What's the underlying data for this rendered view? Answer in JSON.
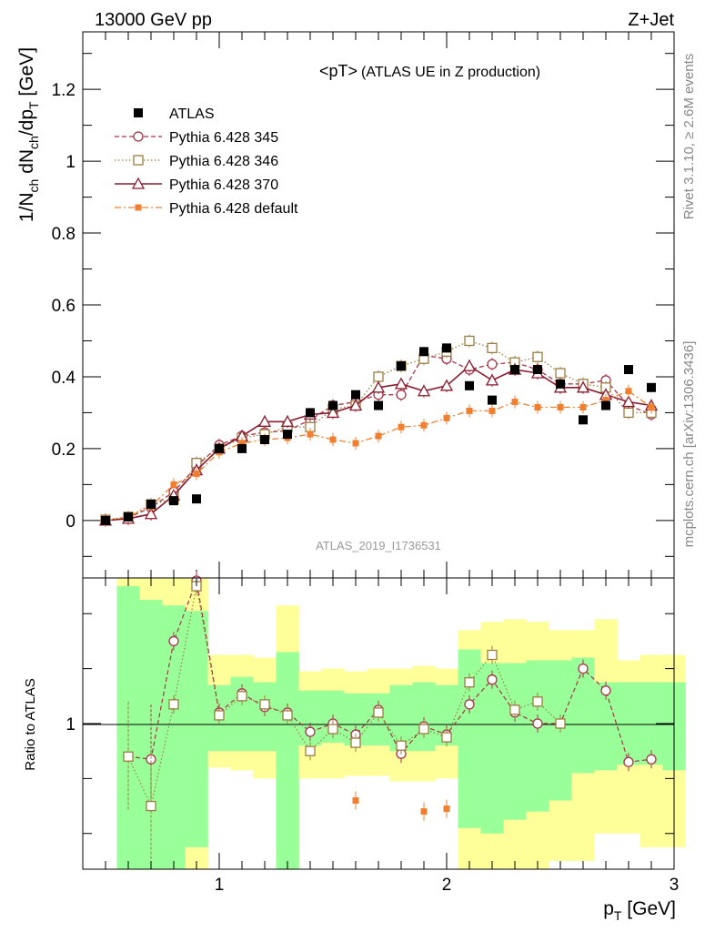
{
  "header": {
    "left": "13000 GeV pp",
    "right": "Z+Jet"
  },
  "side_labels": {
    "rivet": "Rivet 3.1.10, ≥ 2.6M events",
    "mcplots": "mcplots.cern.ch [arXiv:1306.3436]"
  },
  "chart_data": [
    {
      "type": "scatter",
      "panel": "main",
      "title": "<pT>",
      "subtitle": "(ATLAS UE in Z production)",
      "analysis_label": "ATLAS_2019_I1736531",
      "ylabel": "1/N_ch dN_ch/dp_T [GeV]",
      "ylim": [
        -0.16,
        1.36
      ],
      "yticks": [
        0,
        0.2,
        0.4,
        0.6,
        0.8,
        1,
        1.2
      ],
      "ytick_labels": [
        "0",
        "0.2",
        "0.4",
        "0.6",
        "0.8",
        "1",
        "1.2"
      ],
      "xlim": [
        0.4,
        3.0
      ],
      "grid": false,
      "legend_position": "top-left",
      "series": [
        {
          "name": "ATLAS",
          "style": "data",
          "color": "#000000",
          "x": [
            0.5,
            0.6,
            0.7,
            0.8,
            0.9,
            1.0,
            1.1,
            1.2,
            1.3,
            1.4,
            1.5,
            1.6,
            1.7,
            1.8,
            1.9,
            2.0,
            2.1,
            2.2,
            2.3,
            2.4,
            2.5,
            2.6,
            2.7,
            2.8,
            2.9
          ],
          "y": [
            0.0,
            0.01,
            0.045,
            0.055,
            0.06,
            0.2,
            0.2,
            0.225,
            0.24,
            0.3,
            0.32,
            0.35,
            0.32,
            0.43,
            0.47,
            0.48,
            0.375,
            0.335,
            0.42,
            0.42,
            0.38,
            0.28,
            0.32,
            0.42,
            0.37
          ]
        },
        {
          "name": "Pythia 6.428 345",
          "style": "circle-dashed",
          "color": "#a83248",
          "x": [
            0.5,
            0.6,
            0.7,
            0.8,
            0.9,
            1.0,
            1.1,
            1.2,
            1.3,
            1.4,
            1.5,
            1.6,
            1.7,
            1.8,
            1.9,
            2.0,
            2.1,
            2.2,
            2.3,
            2.4,
            2.5,
            2.6,
            2.7,
            2.8,
            2.9
          ],
          "y": [
            0.0,
            0.008,
            0.036,
            0.08,
            0.15,
            0.21,
            0.235,
            0.245,
            0.25,
            0.28,
            0.32,
            0.33,
            0.35,
            0.35,
            0.46,
            0.45,
            0.42,
            0.435,
            0.44,
            0.42,
            0.38,
            0.38,
            0.39,
            0.32,
            0.295
          ]
        },
        {
          "name": "Pythia 6.428 346",
          "style": "square-dotted",
          "color": "#9a7d40",
          "x": [
            0.5,
            0.6,
            0.7,
            0.8,
            0.9,
            1.0,
            1.1,
            1.2,
            1.3,
            1.4,
            1.5,
            1.6,
            1.7,
            1.8,
            1.9,
            2.0,
            2.1,
            2.2,
            2.3,
            2.4,
            2.5,
            2.6,
            2.7,
            2.8,
            2.9
          ],
          "y": [
            0.002,
            0.01,
            0.045,
            0.06,
            0.16,
            0.2,
            0.23,
            0.24,
            0.26,
            0.26,
            0.31,
            0.32,
            0.4,
            0.43,
            0.45,
            0.47,
            0.5,
            0.48,
            0.44,
            0.455,
            0.41,
            0.38,
            0.37,
            0.3,
            0.3
          ]
        },
        {
          "name": "Pythia 6.428 370",
          "style": "triangle-solid",
          "color": "#8b1a2e",
          "x": [
            0.5,
            0.6,
            0.7,
            0.8,
            0.9,
            1.0,
            1.1,
            1.2,
            1.3,
            1.4,
            1.5,
            1.6,
            1.7,
            1.8,
            1.9,
            2.0,
            2.1,
            2.2,
            2.3,
            2.4,
            2.5,
            2.6,
            2.7,
            2.8,
            2.9
          ],
          "y": [
            0.0,
            0.005,
            0.018,
            0.07,
            0.14,
            0.2,
            0.235,
            0.275,
            0.275,
            0.295,
            0.3,
            0.32,
            0.37,
            0.38,
            0.36,
            0.375,
            0.43,
            0.39,
            0.42,
            0.41,
            0.37,
            0.37,
            0.35,
            0.33,
            0.32
          ]
        },
        {
          "name": "Pythia 6.428 default",
          "style": "smallsquare-dashdot",
          "color": "#f08030",
          "x": [
            0.5,
            0.6,
            0.7,
            0.8,
            0.9,
            1.0,
            1.1,
            1.2,
            1.3,
            1.4,
            1.5,
            1.6,
            1.7,
            1.8,
            1.9,
            2.0,
            2.1,
            2.2,
            2.3,
            2.4,
            2.5,
            2.6,
            2.7,
            2.8,
            2.9
          ],
          "y": [
            0.0,
            0.01,
            0.04,
            0.1,
            0.13,
            0.19,
            0.215,
            0.225,
            0.23,
            0.24,
            0.225,
            0.215,
            0.235,
            0.26,
            0.265,
            0.285,
            0.305,
            0.305,
            0.33,
            0.315,
            0.315,
            0.315,
            0.335,
            0.36,
            0.315
          ]
        }
      ]
    },
    {
      "type": "scatter",
      "panel": "ratio",
      "ylabel": "Ratio to ATLAS",
      "xlabel": "p_T [GeV]",
      "xlim": [
        0.4,
        3.0
      ],
      "xticks": [
        1,
        2,
        3
      ],
      "xtick_labels": [
        "1",
        "2",
        "3"
      ],
      "ylim": [
        0.47,
        1.53
      ],
      "yticks": [
        1
      ],
      "ytick_labels": [
        "1"
      ],
      "bands": {
        "bin_edges": [
          0.55,
          0.65,
          0.75,
          0.85,
          0.95,
          1.05,
          1.15,
          1.25,
          1.35,
          1.45,
          1.55,
          1.65,
          1.75,
          1.85,
          1.95,
          2.05,
          2.15,
          2.25,
          2.35,
          2.45,
          2.55,
          2.65,
          2.75,
          2.85,
          2.95
        ],
        "green_lo": [
          0.47,
          0.47,
          0.47,
          0.55,
          0.9,
          0.9,
          0.9,
          0.47,
          0.92,
          0.93,
          0.92,
          0.92,
          0.9,
          0.9,
          0.92,
          0.62,
          0.6,
          0.65,
          0.68,
          0.72,
          0.82,
          0.83,
          0.85,
          0.85,
          0.83
        ],
        "green_hi": [
          1.5,
          1.45,
          1.43,
          1.41,
          1.14,
          1.17,
          1.15,
          1.26,
          1.12,
          1.12,
          1.11,
          1.11,
          1.14,
          1.15,
          1.14,
          1.27,
          1.22,
          1.22,
          1.23,
          1.23,
          1.24,
          1.15,
          1.15,
          1.15,
          1.15
        ],
        "yellow_lo": [
          0.47,
          0.47,
          0.47,
          0.47,
          0.84,
          0.83,
          0.8,
          0.47,
          0.8,
          0.8,
          0.81,
          0.81,
          0.79,
          0.79,
          0.8,
          0.47,
          0.47,
          0.47,
          0.47,
          0.5,
          0.5,
          0.6,
          0.6,
          0.55,
          0.55
        ],
        "yellow_hi": [
          1.55,
          1.55,
          1.55,
          1.55,
          1.25,
          1.25,
          1.24,
          1.43,
          1.19,
          1.2,
          1.19,
          1.2,
          1.2,
          1.21,
          1.2,
          1.34,
          1.37,
          1.38,
          1.37,
          1.34,
          1.34,
          1.38,
          1.23,
          1.25,
          1.25
        ]
      },
      "series": [
        {
          "name": "Pythia 6.428 345",
          "x": [
            0.6,
            0.7,
            0.8,
            0.9,
            1.0,
            1.1,
            1.2,
            1.3,
            1.4,
            1.5,
            1.6,
            1.7,
            1.8,
            1.9,
            2.0,
            2.1,
            2.2,
            2.3,
            2.4,
            2.5,
            2.6,
            2.7,
            2.8,
            2.9
          ],
          "y": [
            0.88,
            0.87,
            1.3,
            1.52,
            1.04,
            1.11,
            1.06,
            1.04,
            0.97,
            1.0,
            0.96,
            1.05,
            0.89,
            0.99,
            0.96,
            1.07,
            1.16,
            1.04,
            1.0,
            1.0,
            1.2,
            1.12,
            0.86,
            0.87
          ]
        },
        {
          "name": "Pythia 6.428 346",
          "x": [
            0.6,
            0.7,
            0.8,
            0.9,
            1.0,
            1.1,
            1.2,
            1.3,
            1.4,
            1.5,
            1.6,
            1.7,
            1.8,
            1.9,
            2.0,
            2.1,
            2.2,
            2.3,
            2.4,
            2.5
          ],
          "y": [
            0.88,
            0.7,
            1.07,
            1.5,
            1.03,
            1.1,
            1.07,
            1.03,
            0.9,
            0.98,
            0.93,
            1.04,
            0.92,
            0.98,
            0.95,
            1.15,
            1.25,
            1.05,
            1.08,
            1.0
          ]
        },
        {
          "name": "Pythia 6.428 default",
          "x": [
            1.6,
            1.9,
            2.0
          ],
          "y": [
            0.72,
            0.68,
            0.69
          ]
        }
      ]
    }
  ]
}
